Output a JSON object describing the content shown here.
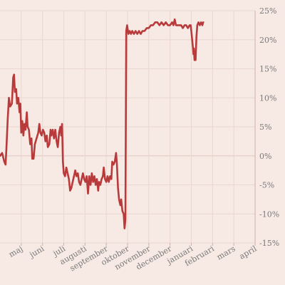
{
  "chart_data": {
    "type": "line",
    "title": "",
    "xlabel": "",
    "ylabel": "",
    "ylim": [
      -15,
      25
    ],
    "y_ticks": [
      25,
      20,
      15,
      10,
      5,
      0,
      -5,
      -10,
      -15
    ],
    "y_tick_labels": [
      "25%",
      "20%",
      "15%",
      "10%",
      "5%",
      "0%",
      "-5%",
      "-10%",
      "-15%"
    ],
    "x_range": [
      0,
      12
    ],
    "x_ticks": [
      1,
      2,
      3,
      4,
      5,
      6,
      7,
      8,
      9,
      10,
      11,
      12
    ],
    "x_tick_labels": [
      "maj",
      "juni",
      "juli",
      "augusti",
      "september",
      "oktober",
      "november",
      "december",
      "januari",
      "februari",
      "mars",
      "april"
    ],
    "grid": true,
    "colors": {
      "line": "#b83a3a",
      "background": "#f7e9e4",
      "grid": "#ead7cf",
      "text": "#7a7a7a"
    },
    "series": [
      {
        "values": [
          [
            0.0,
            0.0
          ],
          [
            0.1,
            0.5
          ],
          [
            0.2,
            -1.0
          ],
          [
            0.26,
            -1.5
          ],
          [
            0.3,
            1.0
          ],
          [
            0.36,
            6.0
          ],
          [
            0.42,
            10.0
          ],
          [
            0.48,
            8.5
          ],
          [
            0.56,
            9.0
          ],
          [
            0.62,
            13.5
          ],
          [
            0.66,
            14.0
          ],
          [
            0.7,
            11.0
          ],
          [
            0.76,
            11.5
          ],
          [
            0.8,
            9.0
          ],
          [
            0.86,
            10.0
          ],
          [
            0.92,
            7.5
          ],
          [
            0.96,
            9.0
          ],
          [
            1.0,
            4.0
          ],
          [
            1.05,
            6.0
          ],
          [
            1.1,
            3.5
          ],
          [
            1.15,
            5.5
          ],
          [
            1.2,
            4.5
          ],
          [
            1.26,
            7.5
          ],
          [
            1.3,
            5.0
          ],
          [
            1.36,
            4.5
          ],
          [
            1.42,
            2.0
          ],
          [
            1.48,
            3.0
          ],
          [
            1.52,
            -0.5
          ],
          [
            1.58,
            -0.5
          ],
          [
            1.64,
            2.0
          ],
          [
            1.72,
            3.0
          ],
          [
            1.8,
            4.0
          ],
          [
            1.85,
            5.5
          ],
          [
            1.9,
            4.0
          ],
          [
            1.96,
            3.5
          ],
          [
            2.02,
            4.5
          ],
          [
            2.08,
            4.0
          ],
          [
            2.14,
            2.5
          ],
          [
            2.2,
            3.5
          ],
          [
            2.25,
            1.5
          ],
          [
            2.32,
            2.0
          ],
          [
            2.38,
            4.5
          ],
          [
            2.42,
            3.5
          ],
          [
            2.48,
            4.5
          ],
          [
            2.54,
            3.0
          ],
          [
            2.6,
            4.5
          ],
          [
            2.66,
            2.5
          ],
          [
            2.72,
            1.5
          ],
          [
            2.78,
            4.0
          ],
          [
            2.84,
            5.0
          ],
          [
            2.88,
            3.5
          ],
          [
            2.92,
            5.5
          ],
          [
            2.96,
            -1.0
          ],
          [
            3.0,
            -3.0
          ],
          [
            3.06,
            -3.5
          ],
          [
            3.12,
            -2.0
          ],
          [
            3.18,
            -3.0
          ],
          [
            3.24,
            -4.0
          ],
          [
            3.3,
            -6.0
          ],
          [
            3.36,
            -5.5
          ],
          [
            3.42,
            -4.5
          ],
          [
            3.48,
            -3.5
          ],
          [
            3.54,
            -2.5
          ],
          [
            3.6,
            -3.5
          ],
          [
            3.66,
            -3.0
          ],
          [
            3.72,
            -4.5
          ],
          [
            3.78,
            -5.0
          ],
          [
            3.84,
            -4.0
          ],
          [
            3.9,
            -3.0
          ],
          [
            3.96,
            -4.0
          ],
          [
            4.02,
            -4.5
          ],
          [
            4.08,
            -3.5
          ],
          [
            4.14,
            -6.5
          ],
          [
            4.2,
            -3.5
          ],
          [
            4.26,
            -5.0
          ],
          [
            4.32,
            -3.0
          ],
          [
            4.38,
            -4.5
          ],
          [
            4.44,
            -3.5
          ],
          [
            4.5,
            -5.0
          ],
          [
            4.56,
            -4.0
          ],
          [
            4.62,
            -6.0
          ],
          [
            4.66,
            -4.5
          ],
          [
            4.72,
            -5.0
          ],
          [
            4.78,
            -4.0
          ],
          [
            4.84,
            -3.5
          ],
          [
            4.88,
            -2.0
          ],
          [
            4.94,
            -4.0
          ],
          [
            5.0,
            -4.5
          ],
          [
            5.06,
            -3.5
          ],
          [
            5.12,
            -4.5
          ],
          [
            5.18,
            -3.5
          ],
          [
            5.24,
            -4.0
          ],
          [
            5.28,
            -1.0
          ],
          [
            5.34,
            -1.5
          ],
          [
            5.4,
            -1.0
          ],
          [
            5.46,
            0.5
          ],
          [
            5.5,
            -1.5
          ],
          [
            5.55,
            -5.5
          ],
          [
            5.6,
            -7.5
          ],
          [
            5.66,
            -8.5
          ],
          [
            5.7,
            -7.5
          ],
          [
            5.76,
            -9.5
          ],
          [
            5.82,
            -10.0
          ],
          [
            5.86,
            -12.5
          ],
          [
            5.9,
            -11.0
          ],
          [
            5.92,
            5.0
          ],
          [
            5.94,
            21.5
          ],
          [
            5.98,
            22.5
          ],
          [
            6.04,
            21.0
          ],
          [
            6.1,
            21.5
          ],
          [
            6.16,
            21.0
          ],
          [
            6.22,
            21.5
          ],
          [
            6.3,
            21.0
          ],
          [
            6.38,
            21.5
          ],
          [
            6.46,
            21.0
          ],
          [
            6.54,
            21.5
          ],
          [
            6.62,
            21.0
          ],
          [
            6.7,
            21.5
          ],
          [
            6.8,
            21.5
          ],
          [
            6.9,
            22.0
          ],
          [
            7.0,
            22.0
          ],
          [
            7.1,
            22.5
          ],
          [
            7.2,
            22.5
          ],
          [
            7.3,
            23.0
          ],
          [
            7.4,
            23.0
          ],
          [
            7.5,
            22.5
          ],
          [
            7.6,
            23.0
          ],
          [
            7.7,
            22.5
          ],
          [
            7.8,
            23.0
          ],
          [
            7.9,
            22.5
          ],
          [
            8.0,
            22.5
          ],
          [
            8.1,
            23.0
          ],
          [
            8.16,
            22.5
          ],
          [
            8.22,
            23.5
          ],
          [
            8.28,
            22.5
          ],
          [
            8.36,
            22.5
          ],
          [
            8.44,
            22.5
          ],
          [
            8.52,
            22.5
          ],
          [
            8.6,
            22.0
          ],
          [
            8.68,
            22.5
          ],
          [
            8.76,
            22.5
          ],
          [
            8.84,
            22.0
          ],
          [
            8.92,
            22.5
          ],
          [
            8.97,
            22.5
          ],
          [
            9.0,
            21.5
          ],
          [
            9.04,
            20.0
          ],
          [
            9.08,
            18.5
          ],
          [
            9.1,
            17.5
          ],
          [
            9.12,
            18.5
          ],
          [
            9.15,
            16.5
          ],
          [
            9.18,
            18.0
          ],
          [
            9.2,
            16.5
          ],
          [
            9.24,
            20.5
          ],
          [
            9.28,
            22.5
          ],
          [
            9.34,
            23.0
          ],
          [
            9.4,
            22.5
          ],
          [
            9.46,
            23.0
          ],
          [
            9.52,
            22.5
          ],
          [
            9.56,
            23.0
          ]
        ]
      }
    ]
  }
}
